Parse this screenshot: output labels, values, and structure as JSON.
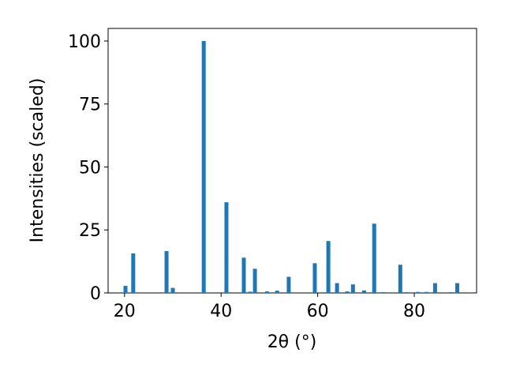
{
  "chart_data": {
    "type": "bar",
    "xlabel": "2θ (°)",
    "ylabel": "Intensities (scaled)",
    "x": [
      20.2,
      21.8,
      28.7,
      30.0,
      36.4,
      41.1,
      44.7,
      46.0,
      47.0,
      49.5,
      51.6,
      54.0,
      59.4,
      62.2,
      64.0,
      66.1,
      67.3,
      69.6,
      71.7,
      73.5,
      77.1,
      78.4,
      80.8,
      82.5,
      84.3,
      87.6,
      88.9
    ],
    "values": [
      2.8,
      15.7,
      16.6,
      2.0,
      100,
      36.0,
      14.0,
      0.5,
      9.6,
      0.6,
      0.9,
      6.4,
      11.8,
      20.6,
      3.9,
      0.6,
      3.4,
      1.0,
      27.5,
      0.3,
      11.2,
      0.3,
      0.4,
      0.4,
      3.9,
      0.3,
      3.9
    ],
    "color": "#1f77b4",
    "xlim": [
      16.6,
      92.9
    ],
    "xticks": [
      20,
      40,
      60,
      80
    ],
    "ylim": [
      0,
      105
    ],
    "yticks": [
      0,
      25,
      50,
      75,
      100
    ],
    "grid": false
  }
}
